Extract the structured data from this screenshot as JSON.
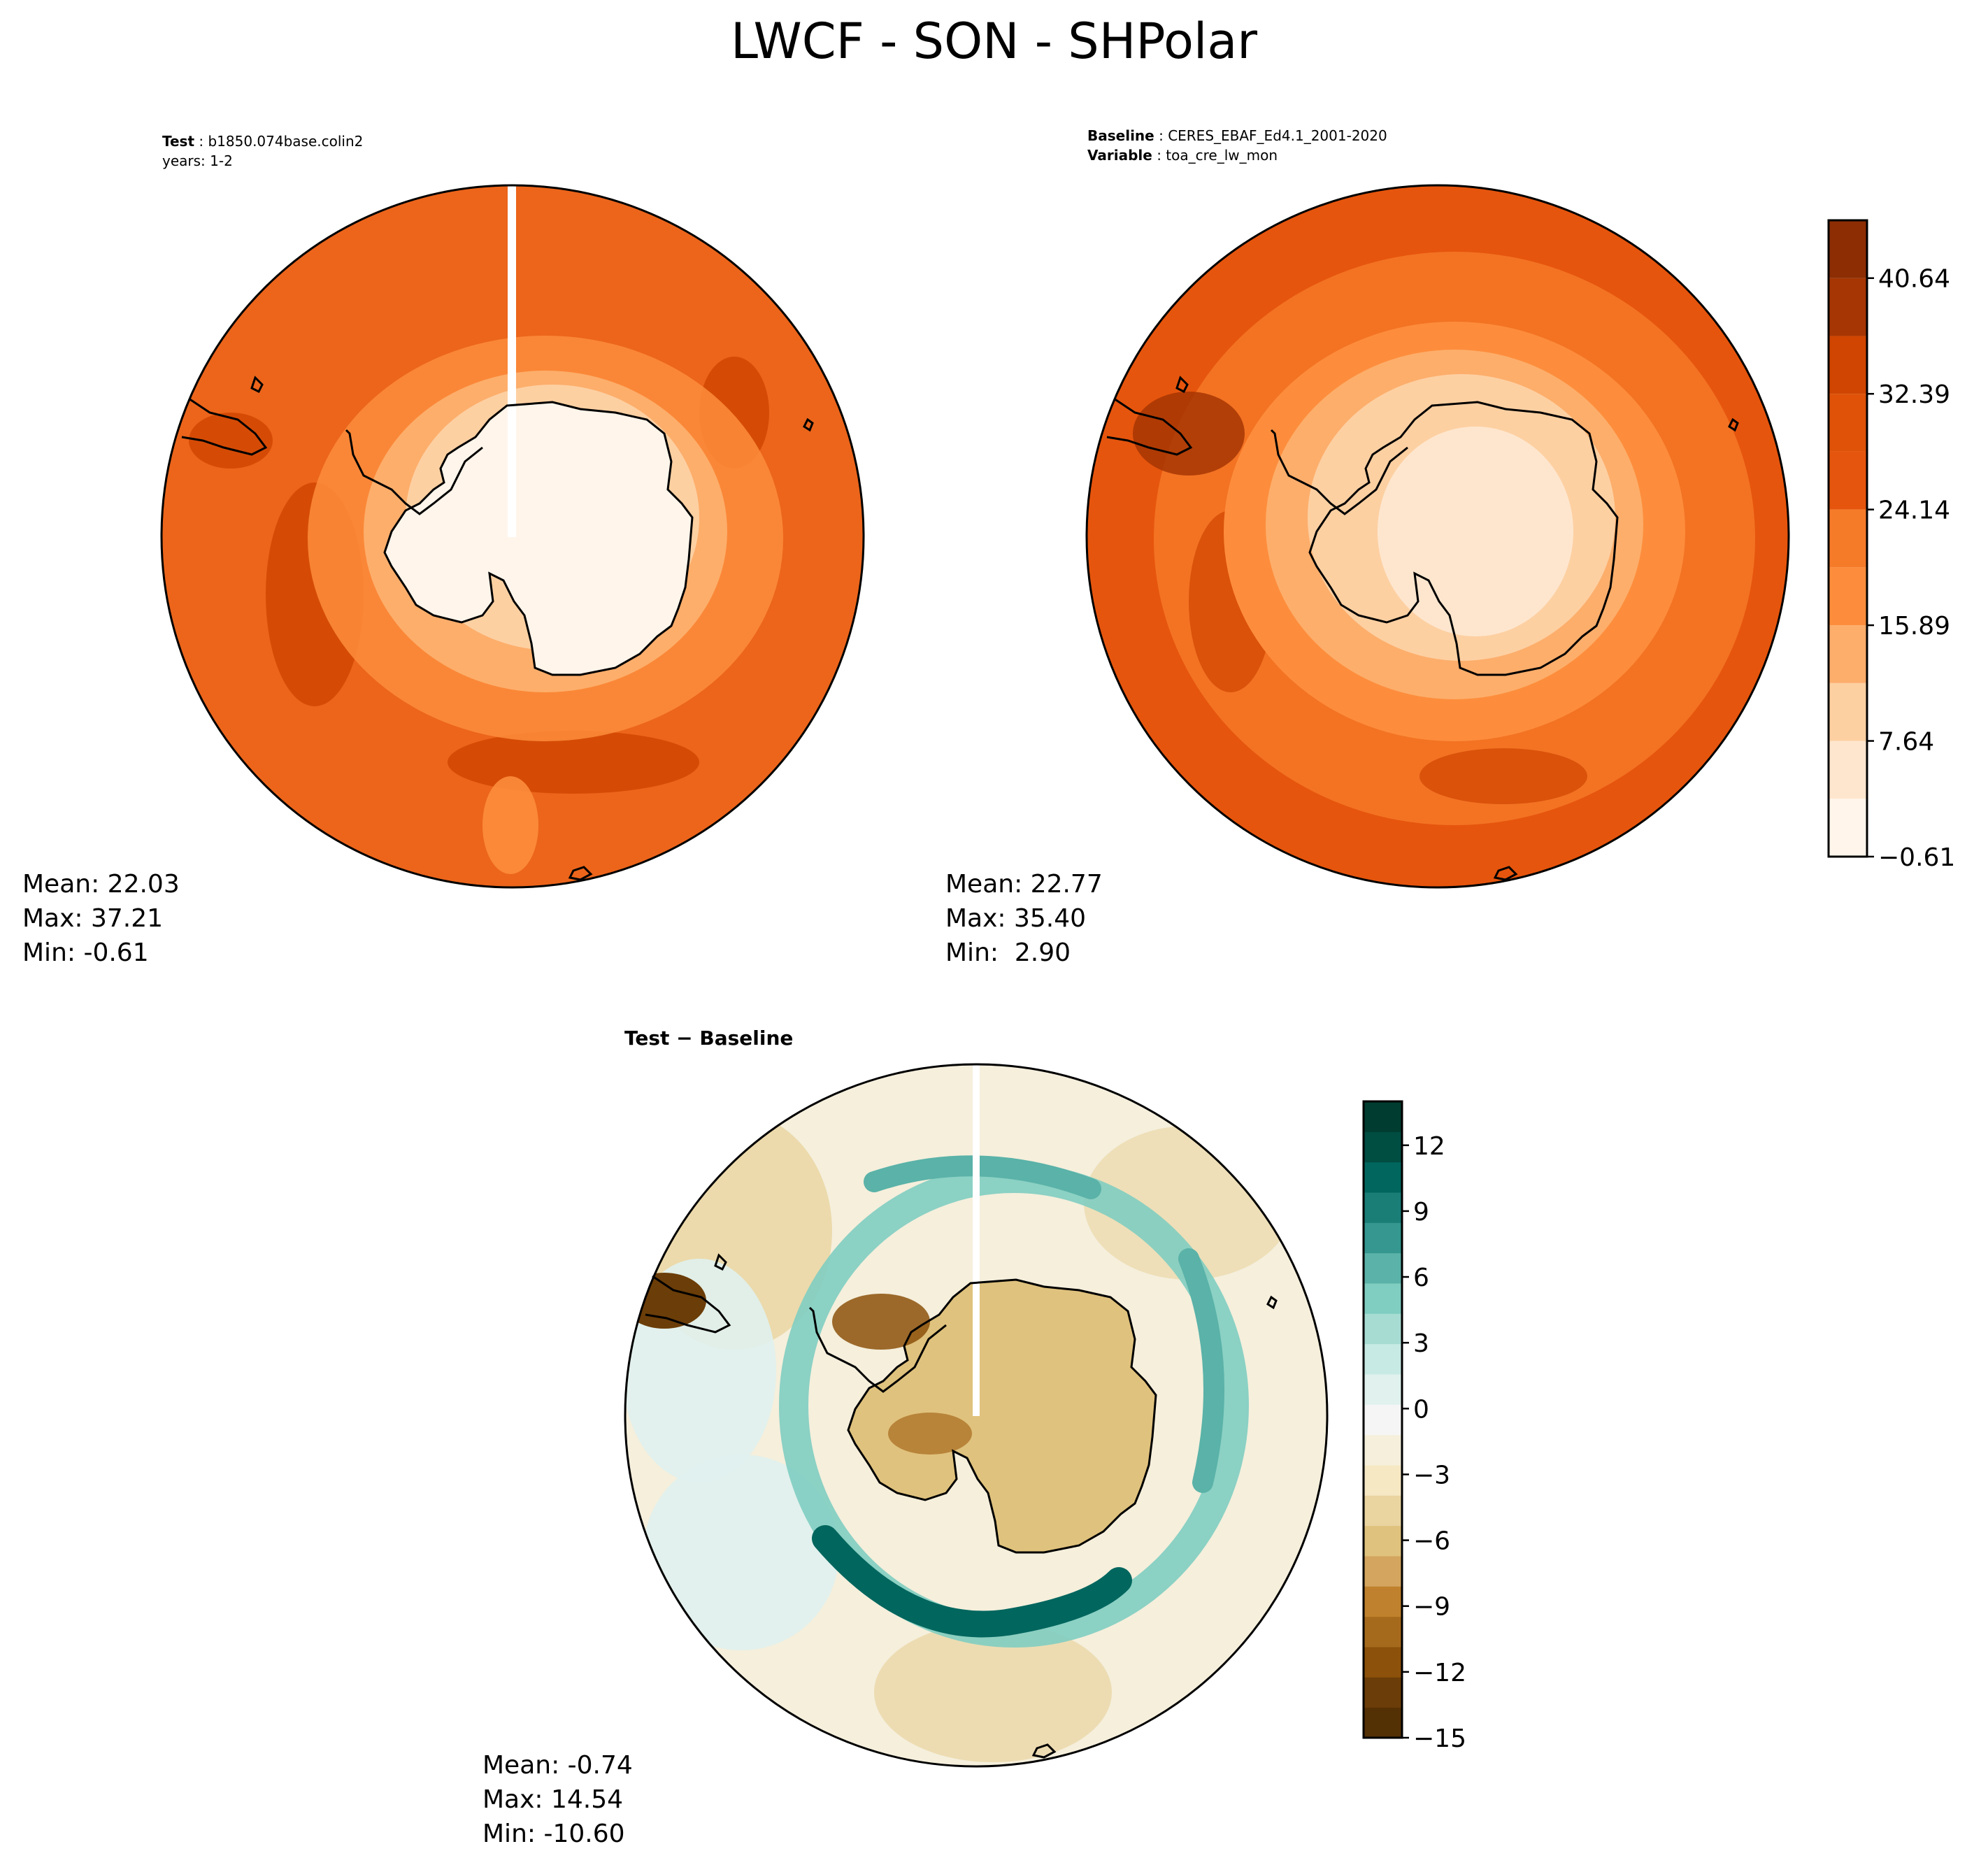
{
  "title": "LWCF - SON - SHPolar",
  "panels": {
    "test": {
      "label_bold": "Test",
      "label_value": "b1850.074base.colin2",
      "line2": "years: 1-2",
      "stats": {
        "mean": "Mean: 22.03",
        "max": "Max: 37.21",
        "min": "Min: -0.61"
      }
    },
    "baseline": {
      "label_bold": "Baseline",
      "label_value": "CERES_EBAF_Ed4.1_2001-2020",
      "line2_bold": "Variable",
      "line2_value": "toa_cre_lw_mon",
      "stats": {
        "mean": "Mean: 22.77",
        "max": "Max: 35.40",
        "min": "Min:  2.90"
      }
    },
    "diff": {
      "label": "Test − Baseline",
      "stats": {
        "mean": "Mean: -0.74",
        "max": "Max: 14.54",
        "min": "Min: -10.60"
      }
    }
  },
  "chart_data": [
    {
      "type": "heatmap",
      "projection": "south-polar-stereographic",
      "panel": "test",
      "variable": "LWCF",
      "season": "SON",
      "region": "SHPolar",
      "mean": 22.03,
      "max": 37.21,
      "min": -0.61
    },
    {
      "type": "heatmap",
      "projection": "south-polar-stereographic",
      "panel": "baseline",
      "variable": "toa_cre_lw_mon",
      "mean": 22.77,
      "max": 35.4,
      "min": 2.9,
      "colorbar": {
        "colormap": "Oranges",
        "levels": [
          -0.61,
          3.515,
          7.64,
          11.765,
          15.89,
          20.015,
          24.14,
          28.265,
          32.39,
          36.515,
          40.64,
          44.765
        ],
        "tick_labels": [
          "−0.61",
          "7.64",
          "15.89",
          "24.14",
          "32.39",
          "40.64"
        ],
        "colors": [
          "#fff5eb",
          "#fee6ce",
          "#fdd0a2",
          "#fdae6b",
          "#fd8d3c",
          "#f67b29",
          "#e6550d",
          "#df5208",
          "#d04501",
          "#a63603",
          "#8c2d04"
        ]
      }
    },
    {
      "type": "heatmap",
      "projection": "south-polar-stereographic",
      "panel": "diff",
      "mean": -0.74,
      "max": 14.54,
      "min": -10.6,
      "colorbar": {
        "colormap": "BrBG",
        "range": [
          -15,
          14
        ],
        "step": 1.5,
        "tick_labels": [
          "12",
          "9",
          "6",
          "3",
          "0",
          "−3",
          "−6",
          "−9",
          "−12",
          "−15"
        ],
        "tick_values": [
          12,
          9,
          6,
          3,
          0,
          -3,
          -6,
          -9,
          -12,
          -15
        ],
        "colors": [
          "#543005",
          "#6b3d08",
          "#8c510a",
          "#a66a1d",
          "#bf812d",
          "#d3a55e",
          "#dfc27d",
          "#ead4a0",
          "#f6e8c3",
          "#f5efdc",
          "#f5f5f5",
          "#e0f1ee",
          "#c7eae5",
          "#a7dcd3",
          "#80cdc1",
          "#5ab2a8",
          "#35978f",
          "#1a7d76",
          "#01665e",
          "#004d42",
          "#003c30"
        ]
      }
    }
  ]
}
